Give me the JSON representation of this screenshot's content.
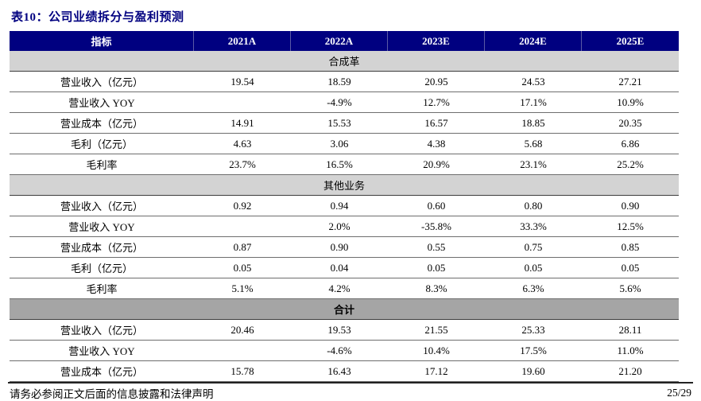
{
  "title": "表10：公司业绩拆分与盈利预测",
  "table": {
    "header": [
      "指标",
      "2021A",
      "2022A",
      "2023E",
      "2024E",
      "2025E"
    ],
    "sections": [
      {
        "name": "合成革",
        "emphasis": false,
        "rows": [
          [
            "营业收入（亿元）",
            "19.54",
            "18.59",
            "20.95",
            "24.53",
            "27.21"
          ],
          [
            "营业收入 YOY",
            "",
            "-4.9%",
            "12.7%",
            "17.1%",
            "10.9%"
          ],
          [
            "营业成本（亿元）",
            "14.91",
            "15.53",
            "16.57",
            "18.85",
            "20.35"
          ],
          [
            "毛利（亿元）",
            "4.63",
            "3.06",
            "4.38",
            "5.68",
            "6.86"
          ],
          [
            "毛利率",
            "23.7%",
            "16.5%",
            "20.9%",
            "23.1%",
            "25.2%"
          ]
        ]
      },
      {
        "name": "其他业务",
        "emphasis": false,
        "rows": [
          [
            "营业收入（亿元）",
            "0.92",
            "0.94",
            "0.60",
            "0.80",
            "0.90"
          ],
          [
            "营业收入 YOY",
            "",
            "2.0%",
            "-35.8%",
            "33.3%",
            "12.5%"
          ],
          [
            "营业成本（亿元）",
            "0.87",
            "0.90",
            "0.55",
            "0.75",
            "0.85"
          ],
          [
            "毛利（亿元）",
            "0.05",
            "0.04",
            "0.05",
            "0.05",
            "0.05"
          ],
          [
            "毛利率",
            "5.1%",
            "4.2%",
            "8.3%",
            "6.3%",
            "5.6%"
          ]
        ]
      },
      {
        "name": "合计",
        "emphasis": true,
        "rows": [
          [
            "营业收入（亿元）",
            "20.46",
            "19.53",
            "21.55",
            "25.33",
            "28.11"
          ],
          [
            "营业收入 YOY",
            "",
            "-4.6%",
            "10.4%",
            "17.5%",
            "11.0%"
          ],
          [
            "营业成本（亿元）",
            "15.78",
            "16.43",
            "17.12",
            "19.60",
            "21.20"
          ]
        ]
      }
    ]
  },
  "footer": {
    "disclaimer": "请务必参阅正文后面的信息披露和法律声明",
    "page_number": "25/29"
  },
  "colors": {
    "header_background": "#000080",
    "title_text": "#000080",
    "header_text": "#ffffff",
    "section_light_gray": "#d3d3d3",
    "section_dark_gray": "#a5a5a5",
    "row_line": "#6e6e6e"
  }
}
